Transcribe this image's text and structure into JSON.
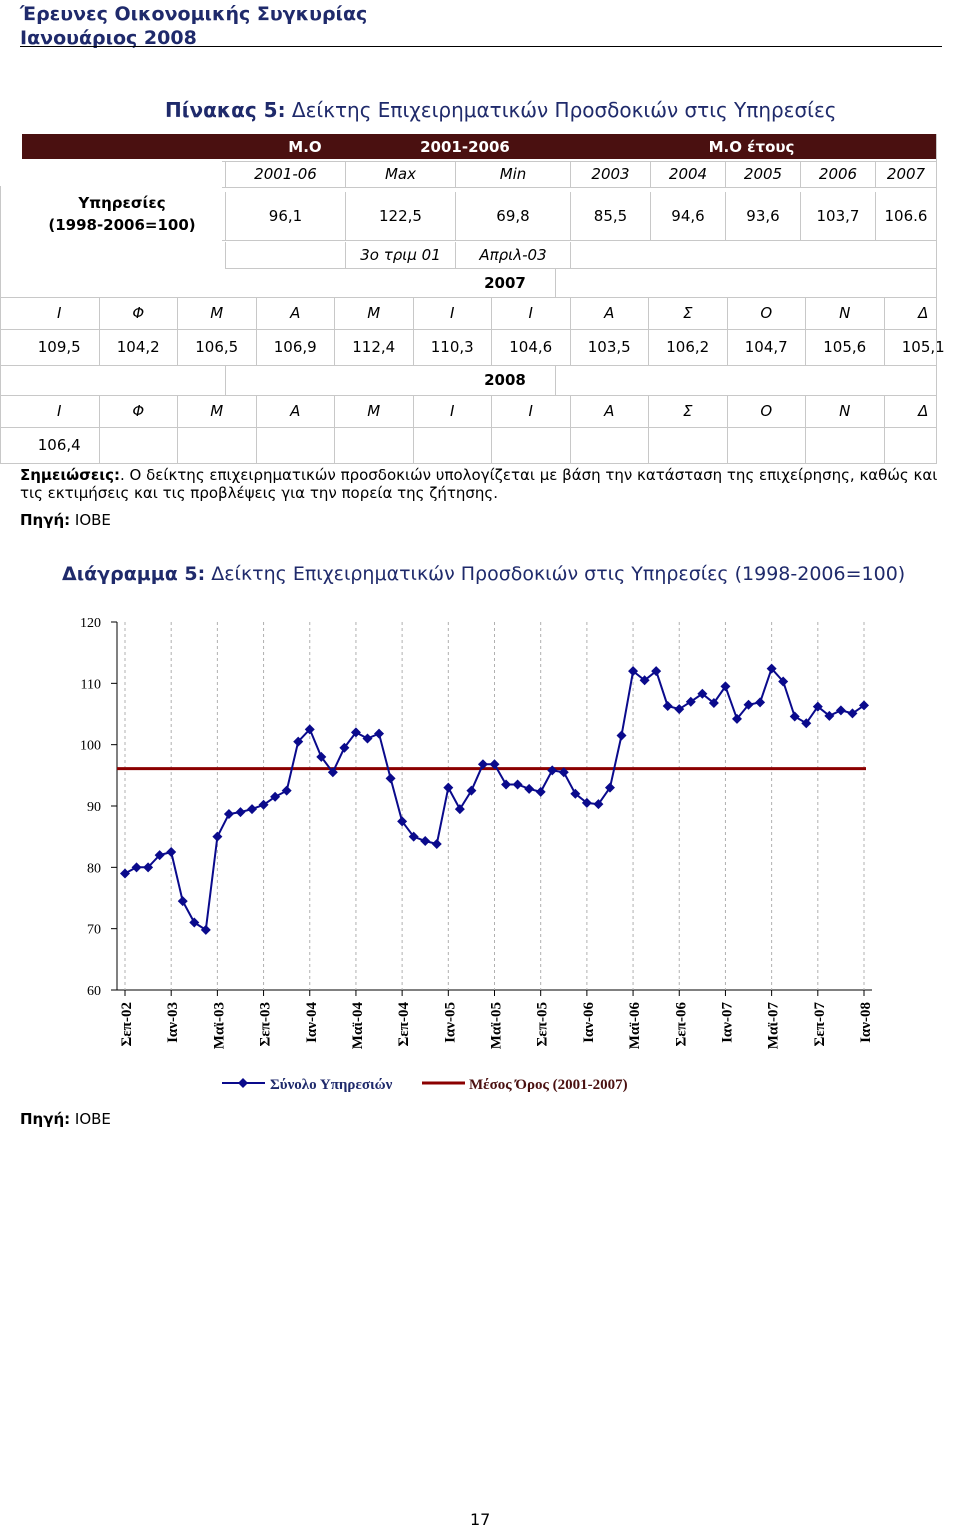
{
  "header": {
    "line1": "Έρευνες Οικονομικής Συγκυρίας",
    "line2": "Ιανουάριος 2008"
  },
  "table": {
    "title_bold": "Πίνακας 5:",
    "title_rest": " Δείκτης Επιχειρηματικών Προσδοκιών στις Υπηρεσίες",
    "row_label_1": "Υπηρεσίες",
    "row_label_2": "(1998-2006=100)",
    "h_mo": "Μ.Ο",
    "h_period": "2001-2006",
    "h_mo_year": "Μ.Ο έτους",
    "sub": [
      "2001-06",
      "Max",
      "Min",
      "2003",
      "2004",
      "2005",
      "2006",
      "2007"
    ],
    "vals": [
      "96,1",
      "122,5",
      "69,8",
      "85,5",
      "94,6",
      "93,6",
      "103,7",
      "106.6"
    ],
    "max_date": "3ο τριμ 01",
    "min_date": "Απριλ-03",
    "year_2007": "2007",
    "year_2008": "2008",
    "months": [
      "Ι",
      "Φ",
      "Μ",
      "Α",
      "Μ",
      "Ι",
      "Ι",
      "Α",
      "Σ",
      "Ο",
      "Ν",
      "Δ"
    ],
    "values_2007": [
      "109,5",
      "104,2",
      "106,5",
      "106,9",
      "112,4",
      "110,3",
      "104,6",
      "103,5",
      "106,2",
      "104,7",
      "105,6",
      "105,1"
    ],
    "values_2008": [
      "106,4"
    ]
  },
  "notes": {
    "label": "Σημειώσεις:",
    "text": ". Ο δείκτης επιχειρηματικών προσδοκιών υπολογίζεται με βάση την κατάσταση της επιχείρησης, καθώς και τις εκτιμήσεις και τις προβλέψεις για την πορεία της ζήτησης.",
    "source_label": "Πηγή:",
    "source": " ΙΟΒΕ"
  },
  "diagram": {
    "title_bold": "Διάγραμμα 5:",
    "title_rest": " Δείκτης Επιχειρηματικών Προσδοκιών στις Υπηρεσίες (1998-2006=100)"
  },
  "chart_data": {
    "type": "line",
    "title": "",
    "xlabel": "",
    "ylabel": "",
    "ylim": [
      60,
      120
    ],
    "yticks": [
      "120",
      "110",
      "100",
      "90",
      "80",
      "70",
      "60"
    ],
    "x_tick_labels": [
      "Σεπ-02",
      "Ιαν-03",
      "Μαϊ-03",
      "Σεπ-03",
      "Ιαν-04",
      "Μαϊ-04",
      "Σεπ-04",
      "Ιαν-05",
      "Μαϊ-05",
      "Σεπ-05",
      "Ιαν-06",
      "Μαϊ-06",
      "Σεπ-06",
      "Ιαν-07",
      "Μαϊ-07",
      "Σεπ-07",
      "Ιαν-08"
    ],
    "grid": "vertical dashed",
    "legend_position": "bottom",
    "series": [
      {
        "name": "Σύνολο Υπηρεσιών",
        "color": "#0a0a8c",
        "marker": "diamond",
        "x": [
          "Σεπ-02",
          "Οκτ-02",
          "Νοε-02",
          "Δεκ-02",
          "Ιαν-03",
          "Φεβ-03",
          "Μαρ-03",
          "Απρ-03",
          "Μαϊ-03",
          "Ιουν-03",
          "Ιουλ-03",
          "Αυγ-03",
          "Σεπ-03",
          "Οκτ-03",
          "Νοε-03",
          "Δεκ-03",
          "Ιαν-04",
          "Φεβ-04",
          "Μαρ-04",
          "Απρ-04",
          "Μαϊ-04",
          "Ιουν-04",
          "Ιουλ-04",
          "Αυγ-04",
          "Σεπ-04",
          "Οκτ-04",
          "Νοε-04",
          "Δεκ-04",
          "Ιαν-05",
          "Φεβ-05",
          "Μαρ-05",
          "Απρ-05",
          "Μαϊ-05",
          "Ιουν-05",
          "Ιουλ-05",
          "Αυγ-05",
          "Σεπ-05",
          "Οκτ-05",
          "Νοε-05",
          "Δεκ-05",
          "Ιαν-06",
          "Φεβ-06",
          "Μαρ-06",
          "Απρ-06",
          "Μαϊ-06",
          "Ιουν-06",
          "Ιουλ-06",
          "Αυγ-06",
          "Σεπ-06",
          "Οκτ-06",
          "Νοε-06",
          "Δεκ-06",
          "Ιαν-07",
          "Φεβ-07",
          "Μαρ-07",
          "Απρ-07",
          "Μαϊ-07",
          "Ιουν-07",
          "Ιουλ-07",
          "Αυγ-07",
          "Σεπ-07",
          "Οκτ-07",
          "Νοε-07",
          "Δεκ-07",
          "Ιαν-08"
        ],
        "values": [
          79,
          80,
          80,
          82,
          82.5,
          74.5,
          71,
          69.8,
          85,
          88.7,
          89,
          89.5,
          90.2,
          91.5,
          92.5,
          100.5,
          102.5,
          98,
          95.5,
          99.5,
          102,
          101,
          101.8,
          94.5,
          87.5,
          85,
          84.3,
          83.8,
          93,
          89.5,
          92.5,
          96.8,
          96.8,
          93.5,
          93.5,
          92.8,
          92.3,
          95.8,
          95.5,
          92,
          90.5,
          90.3,
          93,
          101.5,
          112,
          110.5,
          112,
          106.3,
          105.8,
          107,
          108.3,
          106.8,
          109.5,
          104.2,
          106.5,
          106.9,
          112.4,
          110.3,
          104.6,
          103.5,
          106.2,
          104.7,
          105.6,
          105.1,
          106.4
        ]
      },
      {
        "name": "Μέσος Όρος (2001-2007)",
        "color": "#8b0000",
        "constant": 96.1
      }
    ]
  },
  "chart_source": {
    "label": "Πηγή:",
    "value": " ΙΟΒΕ"
  },
  "page_number": "17"
}
